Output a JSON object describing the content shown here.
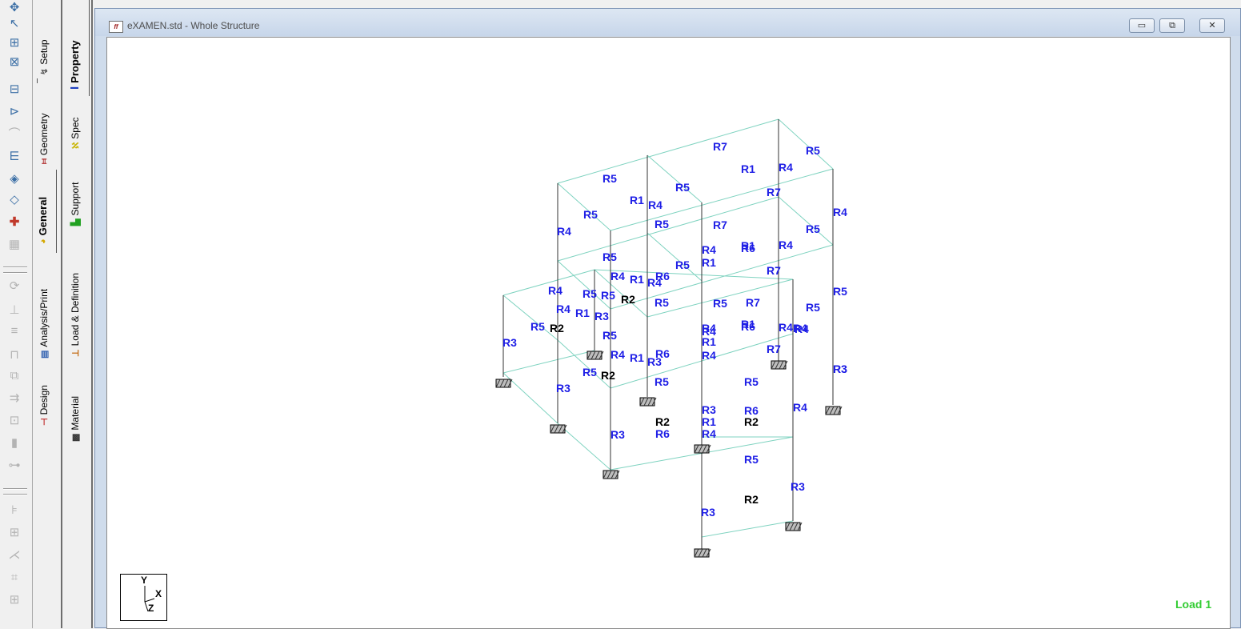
{
  "window": {
    "title": "eXAMEN.std - Whole Structure",
    "icon": "staad-app-icon",
    "buttons": [
      "minimize",
      "restore",
      "close"
    ]
  },
  "page_tabs": {
    "outer": [
      {
        "label": "Setup",
        "icon": "setup-icon"
      },
      {
        "label": "Geometry",
        "icon": "geometry-icon"
      },
      {
        "label": "General",
        "icon": "general-icon",
        "active": true
      },
      {
        "label": "Analysis/Print",
        "icon": "analysis-icon"
      },
      {
        "label": "Design",
        "icon": "design-icon"
      }
    ],
    "inner": [
      {
        "label": "Property",
        "icon": "property-icon",
        "active": true
      },
      {
        "label": "Spec",
        "icon": "spec-icon"
      },
      {
        "label": "Support",
        "icon": "support-icon"
      },
      {
        "label": "Load & Definition",
        "icon": "load-icon"
      },
      {
        "label": "Material",
        "icon": "material-icon"
      }
    ]
  },
  "viewport": {
    "load_label": "Load 1",
    "triad": {
      "y": "Y",
      "x": "X",
      "z": "Z"
    }
  },
  "model_labels": [
    {
      "t": "R7",
      "c": "blue"
    },
    {
      "t": "R5",
      "c": "blue"
    },
    {
      "t": "R1",
      "c": "blue"
    },
    {
      "t": "R4",
      "c": "blue"
    },
    {
      "t": "R5",
      "c": "blue"
    },
    {
      "t": "R5",
      "c": "blue"
    },
    {
      "t": "R7",
      "c": "blue"
    },
    {
      "t": "R1",
      "c": "blue"
    },
    {
      "t": "R4",
      "c": "blue"
    },
    {
      "t": "R4",
      "c": "blue"
    },
    {
      "t": "R5",
      "c": "blue"
    },
    {
      "t": "R5",
      "c": "blue"
    },
    {
      "t": "R7",
      "c": "blue"
    },
    {
      "t": "R5",
      "c": "blue"
    },
    {
      "t": "R4",
      "c": "blue"
    },
    {
      "t": "R4",
      "c": "blue"
    },
    {
      "t": "R1",
      "c": "blue"
    },
    {
      "t": "R6",
      "c": "blue"
    },
    {
      "t": "R4",
      "c": "blue"
    },
    {
      "t": "R5",
      "c": "blue"
    },
    {
      "t": "R5",
      "c": "blue"
    },
    {
      "t": "R1",
      "c": "blue"
    },
    {
      "t": "R7",
      "c": "blue"
    },
    {
      "t": "R4",
      "c": "blue"
    },
    {
      "t": "R1",
      "c": "blue"
    },
    {
      "t": "R4",
      "c": "blue"
    },
    {
      "t": "R6",
      "c": "blue"
    },
    {
      "t": "R4",
      "c": "blue"
    },
    {
      "t": "R5",
      "c": "blue"
    },
    {
      "t": "R5",
      "c": "blue"
    },
    {
      "t": "R2",
      "c": "black"
    },
    {
      "t": "R5",
      "c": "blue"
    },
    {
      "t": "R5",
      "c": "blue"
    },
    {
      "t": "R7",
      "c": "blue"
    },
    {
      "t": "R5",
      "c": "blue"
    },
    {
      "t": "R4",
      "c": "blue"
    },
    {
      "t": "R4",
      "c": "blue"
    },
    {
      "t": "R1",
      "c": "blue"
    },
    {
      "t": "R3",
      "c": "blue"
    },
    {
      "t": "R5",
      "c": "blue"
    },
    {
      "t": "R5",
      "c": "blue"
    },
    {
      "t": "R2",
      "c": "black"
    },
    {
      "t": "R3",
      "c": "blue"
    },
    {
      "t": "R5",
      "c": "blue"
    },
    {
      "t": "R4",
      "c": "blue"
    },
    {
      "t": "R1",
      "c": "blue"
    },
    {
      "t": "R6",
      "c": "blue"
    },
    {
      "t": "R3",
      "c": "blue"
    },
    {
      "t": "R4",
      "c": "blue"
    },
    {
      "t": "R4",
      "c": "blue"
    },
    {
      "t": "R1",
      "c": "blue"
    },
    {
      "t": "R6",
      "c": "blue"
    },
    {
      "t": "R4",
      "c": "blue"
    },
    {
      "t": "R7",
      "c": "blue"
    },
    {
      "t": "R3",
      "c": "blue"
    },
    {
      "t": "R4",
      "c": "blue"
    },
    {
      "t": "R1",
      "c": "blue"
    },
    {
      "t": "R4",
      "c": "blue"
    },
    {
      "t": "R3",
      "c": "blue"
    },
    {
      "t": "R5",
      "c": "blue"
    },
    {
      "t": "R2",
      "c": "black"
    },
    {
      "t": "R5",
      "c": "blue"
    },
    {
      "t": "R5",
      "c": "blue"
    },
    {
      "t": "R3",
      "c": "blue"
    },
    {
      "t": "R4",
      "c": "blue"
    },
    {
      "t": "R3",
      "c": "blue"
    },
    {
      "t": "R6",
      "c": "blue"
    },
    {
      "t": "R1",
      "c": "blue"
    },
    {
      "t": "R2",
      "c": "black"
    },
    {
      "t": "R2",
      "c": "black"
    },
    {
      "t": "R4",
      "c": "blue"
    },
    {
      "t": "R3",
      "c": "blue"
    },
    {
      "t": "R6",
      "c": "blue"
    },
    {
      "t": "R5",
      "c": "blue"
    },
    {
      "t": "R3",
      "c": "blue"
    },
    {
      "t": "R3",
      "c": "blue"
    },
    {
      "t": "R2",
      "c": "black"
    }
  ],
  "colors": {
    "label_blue": "#1f1fe6",
    "label_black": "#000000",
    "beam_line": "#7fd3c0",
    "column_line": "#333333",
    "load_green": "#33cc33"
  },
  "toolbar_icons": [
    "select-cursor-icon",
    "nodes-cursor-icon",
    "beams-cursor-icon",
    "plates-cursor-icon",
    "surface-cursor-icon",
    "solid-cursor-icon",
    "geometry-cursor-icon",
    "physical-member-icon",
    "parametric-surface-icon",
    "add-node-icon",
    "mesh-icon",
    "rotate-icon",
    "snap-node-icon",
    "translational-repeat-icon",
    "circular-repeat-icon",
    "mirror-icon",
    "move-icon",
    "stretch-icon",
    "insert-node-icon",
    "add-beam-icon",
    "connect-beams-icon",
    "split-beam-icon",
    "intersect-icon",
    "merge-icon",
    "renumber-icon"
  ]
}
